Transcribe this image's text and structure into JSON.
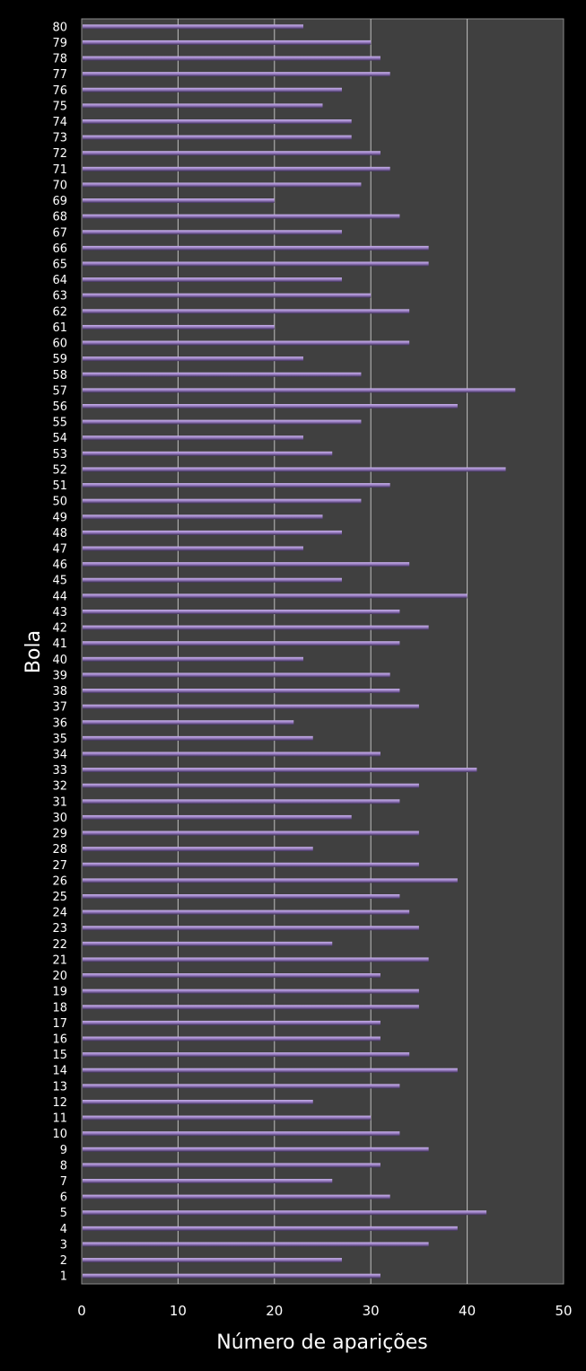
{
  "chart_data": {
    "type": "bar",
    "orientation": "horizontal",
    "title": "",
    "xlabel": "Número de aparições",
    "ylabel": "Bola",
    "xlim": [
      0,
      50
    ],
    "xticks": [
      "0",
      "10",
      "20",
      "30",
      "40",
      "50"
    ],
    "grid": true,
    "legend": "none",
    "colors": {
      "background": "#000000",
      "plot_area": "#404040",
      "bar": "#9b7fc4",
      "bar_dark": "#4a3a66",
      "gridline": "#bfbfbf"
    },
    "categories": [
      "1",
      "2",
      "3",
      "4",
      "5",
      "6",
      "7",
      "8",
      "9",
      "10",
      "11",
      "12",
      "13",
      "14",
      "15",
      "16",
      "17",
      "18",
      "19",
      "20",
      "21",
      "22",
      "23",
      "24",
      "25",
      "26",
      "27",
      "28",
      "29",
      "30",
      "31",
      "32",
      "33",
      "34",
      "35",
      "36",
      "37",
      "38",
      "39",
      "40",
      "41",
      "42",
      "43",
      "44",
      "45",
      "46",
      "47",
      "48",
      "49",
      "50",
      "51",
      "52",
      "53",
      "54",
      "55",
      "56",
      "57",
      "58",
      "59",
      "60",
      "61",
      "62",
      "63",
      "64",
      "65",
      "66",
      "67",
      "68",
      "69",
      "70",
      "71",
      "72",
      "73",
      "74",
      "75",
      "76",
      "77",
      "78",
      "79",
      "80"
    ],
    "values": [
      31,
      27,
      36,
      39,
      42,
      32,
      26,
      31,
      36,
      33,
      30,
      24,
      33,
      39,
      34,
      31,
      31,
      35,
      35,
      31,
      36,
      26,
      35,
      34,
      33,
      39,
      35,
      24,
      35,
      28,
      33,
      35,
      41,
      31,
      24,
      22,
      35,
      33,
      32,
      23,
      33,
      36,
      33,
      40,
      27,
      34,
      23,
      27,
      25,
      29,
      32,
      44,
      26,
      23,
      29,
      39,
      45,
      29,
      23,
      34,
      20,
      34,
      30,
      27,
      36,
      36,
      27,
      33,
      20,
      29,
      32,
      31,
      28,
      28,
      25,
      27,
      32,
      31,
      30,
      23
    ]
  }
}
